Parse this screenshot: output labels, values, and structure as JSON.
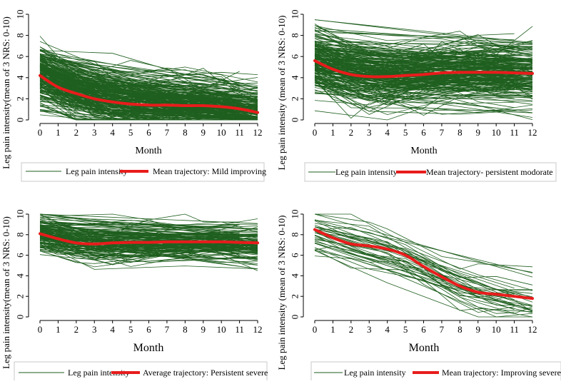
{
  "chart_data": [
    {
      "type": "line",
      "title": "",
      "xlabel": "Month",
      "ylabel": "Leg pain intensity(mean of 3 NRS: 0-10)",
      "xlim": [
        0,
        12
      ],
      "ylim": [
        0,
        10
      ],
      "xticks": [
        0,
        1,
        2,
        3,
        4,
        5,
        6,
        7,
        8,
        9,
        10,
        11,
        12
      ],
      "yticks": [
        0,
        2,
        4,
        6,
        8,
        10
      ],
      "grid": false,
      "legend_position": "bottom",
      "colors": {
        "individual": "#1f5f1f",
        "mean": "#e81c1c"
      },
      "series": [
        {
          "name": "Leg pain intensity",
          "kind": "individual trajectories",
          "range": [
            0,
            10
          ]
        },
        {
          "name": "Mean trajectory: Mild improving",
          "x": [
            0,
            1,
            2,
            3,
            4,
            5,
            6,
            7,
            8,
            9,
            10,
            11,
            12
          ],
          "values": [
            4.2,
            3.1,
            2.5,
            2.0,
            1.7,
            1.5,
            1.4,
            1.4,
            1.35,
            1.35,
            1.25,
            1.05,
            0.7
          ]
        }
      ]
    },
    {
      "type": "line",
      "title": "",
      "xlabel": "Month",
      "ylabel": "Leg pain intensity (mean of 3 NRS: 0-10)",
      "xlim": [
        0,
        12
      ],
      "ylim": [
        0,
        10
      ],
      "xticks": [
        0,
        1,
        2,
        3,
        4,
        5,
        6,
        7,
        8,
        9,
        10,
        11,
        12
      ],
      "yticks": [
        0,
        2,
        4,
        6,
        8,
        10
      ],
      "grid": false,
      "legend_position": "bottom",
      "colors": {
        "individual": "#1f5f1f",
        "mean": "#e81c1c"
      },
      "series": [
        {
          "name": "Leg pain intensity",
          "kind": "individual trajectories",
          "range": [
            0,
            10
          ]
        },
        {
          "name": "Mean trajectory- persistent modorate",
          "x": [
            0,
            1,
            2,
            3,
            4,
            5,
            6,
            7,
            8,
            9,
            10,
            11,
            12
          ],
          "values": [
            5.6,
            4.8,
            4.3,
            4.1,
            4.1,
            4.2,
            4.3,
            4.45,
            4.5,
            4.5,
            4.5,
            4.45,
            4.4
          ]
        }
      ]
    },
    {
      "type": "line",
      "title": "",
      "xlabel": "Month",
      "ylabel": "Leg pain intensity(mean of 3 NRS: 0-10)",
      "xlim": [
        0,
        12
      ],
      "ylim": [
        0,
        10
      ],
      "xticks": [
        0,
        1,
        2,
        3,
        4,
        5,
        6,
        7,
        8,
        9,
        10,
        11,
        12
      ],
      "yticks": [
        0,
        2,
        4,
        6,
        8,
        10
      ],
      "grid": false,
      "legend_position": "bottom",
      "colors": {
        "individual": "#1f5f1f",
        "mean": "#e81c1c"
      },
      "series": [
        {
          "name": "Leg pain intensity",
          "kind": "individual trajectories",
          "range": [
            0,
            10
          ]
        },
        {
          "name": "Average trajectory: Persistent severe",
          "x": [
            0,
            1,
            2,
            3,
            4,
            5,
            6,
            7,
            8,
            9,
            10,
            11,
            12
          ],
          "values": [
            8.1,
            7.6,
            7.2,
            7.1,
            7.2,
            7.25,
            7.25,
            7.3,
            7.3,
            7.3,
            7.3,
            7.25,
            7.2
          ]
        }
      ]
    },
    {
      "type": "line",
      "title": "",
      "xlabel": "Month",
      "ylabel": "Leg pain intensity (mean of 3 NRS: 0-10)",
      "xlim": [
        0,
        12
      ],
      "ylim": [
        0,
        10
      ],
      "xticks": [
        0,
        1,
        2,
        3,
        4,
        5,
        6,
        7,
        8,
        9,
        10,
        11,
        12
      ],
      "yticks": [
        0,
        2,
        4,
        6,
        8,
        10
      ],
      "grid": false,
      "legend_position": "bottom",
      "colors": {
        "individual": "#1f5f1f",
        "mean": "#e81c1c"
      },
      "series": [
        {
          "name": "Leg pain intensity",
          "kind": "individual trajectories",
          "range": [
            0,
            10
          ]
        },
        {
          "name": "Mean trajectory: Improving severe",
          "x": [
            0,
            1,
            2,
            3,
            4,
            5,
            6,
            7,
            8,
            9,
            10,
            11,
            12
          ],
          "values": [
            8.5,
            7.7,
            7.1,
            6.9,
            6.6,
            6.0,
            4.9,
            3.9,
            3.0,
            2.4,
            2.2,
            2.0,
            1.8
          ]
        }
      ]
    }
  ]
}
